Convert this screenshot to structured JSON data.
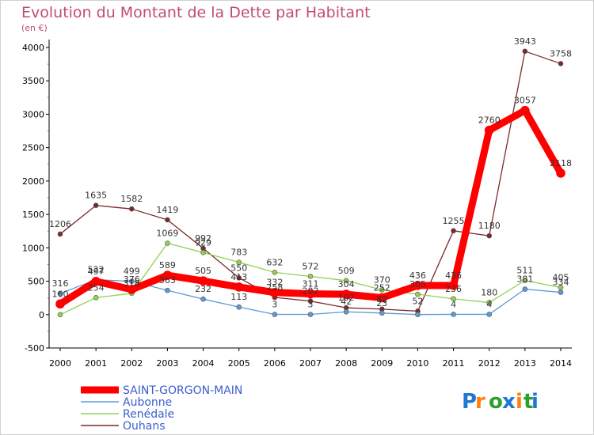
{
  "chart_data": {
    "type": "line",
    "title": "Evolution du Montant de la Dette par Habitant",
    "subtitle": "(en €)",
    "x": [
      "2000",
      "2001",
      "2002",
      "2003",
      "2004",
      "2005",
      "2006",
      "2007",
      "2008",
      "2009",
      "2010",
      "2011",
      "2012",
      "2013",
      "2014"
    ],
    "y_ticks": [
      -500,
      0,
      500,
      1000,
      1500,
      2000,
      2500,
      3000,
      3500,
      4000
    ],
    "ylim": [
      -500,
      4000
    ],
    "grid": false,
    "legend_position": "bottom-left",
    "series": [
      {
        "name": "SAINT-GORGON-MAIN",
        "color": "#ff0000",
        "values": [
          160,
          497,
          376,
          589,
          505,
          413,
          332,
          311,
          304,
          252,
          436,
          436,
          2760,
          3057,
          2118
        ]
      },
      {
        "name": "Aubonne",
        "color": "#5b9bd5",
        "values": [
          316,
          522,
          499,
          363,
          232,
          113,
          3,
          3,
          42,
          23,
          1,
          4,
          4,
          381,
          334
        ]
      },
      {
        "name": "Renédale",
        "color": "#92d050",
        "values": [
          0,
          254,
          318,
          1069,
          929,
          783,
          632,
          572,
          509,
          370,
          305,
          236,
          180,
          511,
          405
        ]
      },
      {
        "name": "Ouhans",
        "color": "#7b2b2b",
        "values": [
          1206,
          1635,
          1582,
          1419,
          992,
          550,
          258,
          202,
          102,
          82,
          52,
          1255,
          1180,
          3943,
          3758
        ]
      }
    ],
    "data_labels": [
      {
        "x": "2000",
        "text": "1206"
      },
      {
        "x": "2001",
        "text": "1635"
      },
      {
        "x": "2002",
        "text": "1582"
      },
      {
        "x": "2003",
        "text": "1419"
      },
      {
        "x": "2004",
        "text": "992"
      },
      {
        "x": "2005",
        "text": "550"
      },
      {
        "x": "2010",
        "text": "52"
      },
      {
        "x": "2011",
        "text": "1255"
      },
      {
        "x": "2012",
        "text": "1180"
      },
      {
        "x": "2013",
        "text": "3943"
      },
      {
        "x": "2014",
        "text": "3758"
      },
      {
        "x": "2000",
        "text": "316"
      },
      {
        "x": "2001",
        "text": "522"
      },
      {
        "x": "2002",
        "text": "499"
      },
      {
        "x": "2003",
        "text": "363"
      },
      {
        "x": "2004",
        "text": "232"
      },
      {
        "x": "2005",
        "text": "113"
      },
      {
        "x": "2006",
        "text": "3"
      },
      {
        "x": "2007",
        "text": "3"
      },
      {
        "x": "2008",
        "text": "42"
      },
      {
        "x": "2009",
        "text": "23"
      },
      {
        "x": "2011",
        "text": "4"
      },
      {
        "x": "2012",
        "text": "4"
      },
      {
        "x": "2013",
        "text": "381"
      },
      {
        "x": "2014",
        "text": "334"
      },
      {
        "x": "2001",
        "text": "254"
      },
      {
        "x": "2002",
        "text": "318"
      },
      {
        "x": "2003",
        "text": "1069"
      },
      {
        "x": "2004",
        "text": "929"
      },
      {
        "x": "2005",
        "text": "783"
      },
      {
        "x": "2006",
        "text": "632"
      },
      {
        "x": "2007",
        "text": "572"
      },
      {
        "x": "2008",
        "text": "509"
      },
      {
        "x": "2009",
        "text": "370"
      },
      {
        "x": "2010",
        "text": "305"
      },
      {
        "x": "2011",
        "text": "236"
      },
      {
        "x": "2012",
        "text": "180"
      },
      {
        "x": "2013",
        "text": "511"
      },
      {
        "x": "2014",
        "text": "405"
      },
      {
        "x": "2000",
        "text": "160"
      },
      {
        "x": "2001",
        "text": "497"
      },
      {
        "x": "2002",
        "text": "376"
      },
      {
        "x": "2003",
        "text": "589"
      },
      {
        "x": "2004",
        "text": "505"
      },
      {
        "x": "2005",
        "text": "413"
      },
      {
        "x": "2006",
        "text": "332"
      },
      {
        "x": "2007",
        "text": "311"
      },
      {
        "x": "2008",
        "text": "304"
      },
      {
        "x": "2009",
        "text": "252"
      },
      {
        "x": "2010",
        "text": "436"
      },
      {
        "x": "2011",
        "text": "436"
      },
      {
        "x": "2012",
        "text": "2760"
      },
      {
        "x": "2013",
        "text": "3057"
      },
      {
        "x": "2014",
        "text": "2118"
      },
      {
        "x": "2006",
        "text": "258"
      },
      {
        "x": "2007",
        "text": "202"
      },
      {
        "x": "2008",
        "text": "102"
      },
      {
        "x": "2009",
        "text": "82"
      }
    ]
  },
  "logo": {
    "text": "Proxiti",
    "colors": {
      "P": "#1f77d4",
      "r": "#ff7f0e",
      "o": "#2ca02c",
      "x": "#1f77d4",
      "i": "#ff7f0e",
      "t": "#2ca02c",
      "i2": "#1f77d4"
    }
  }
}
